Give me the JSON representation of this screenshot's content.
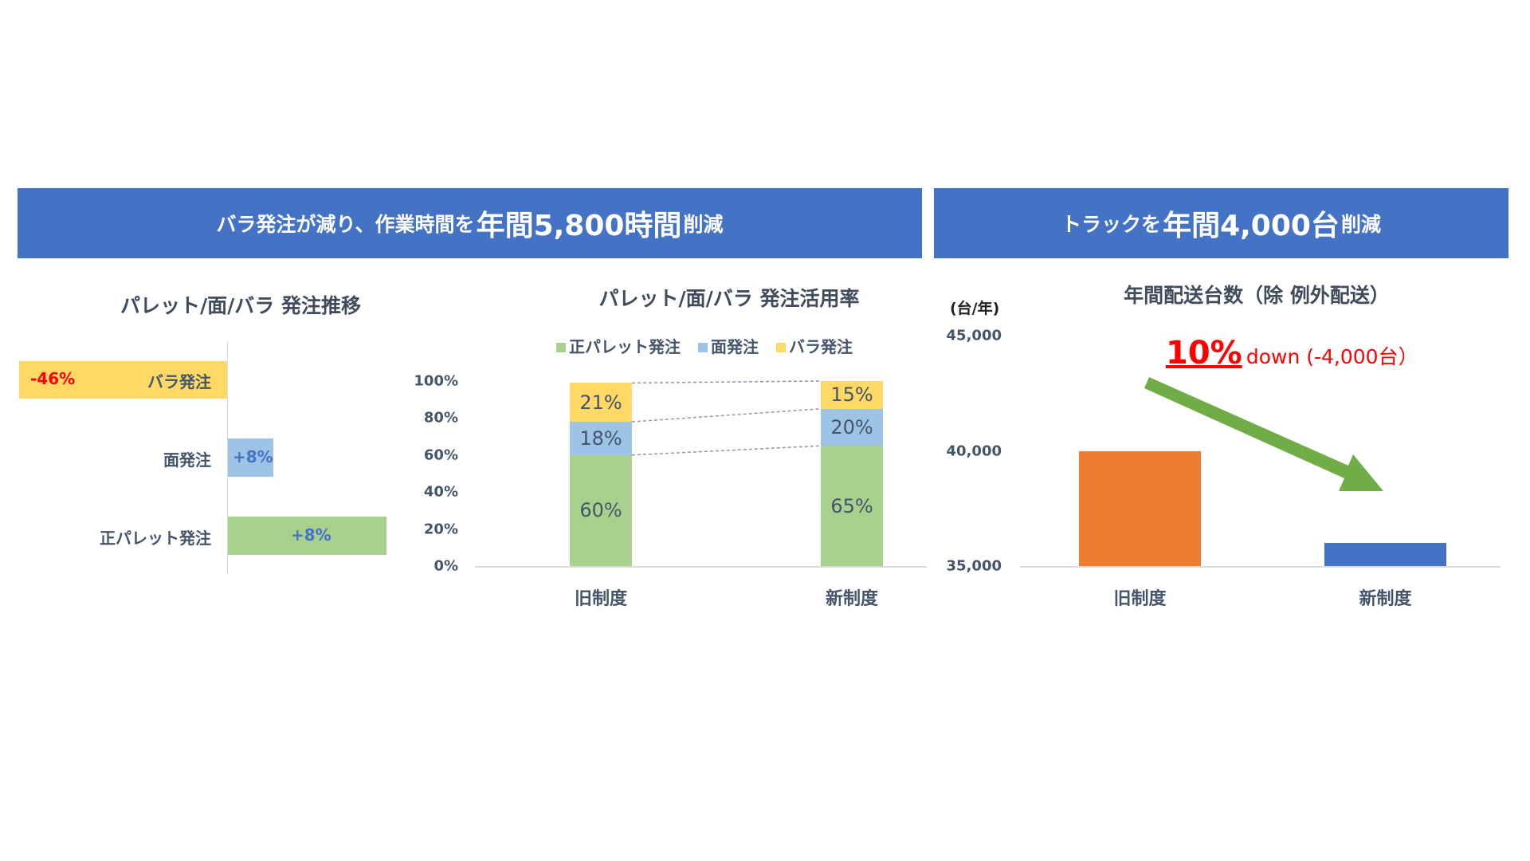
{
  "banners": [
    {
      "pre": "バラ発注が減り、作業時間を",
      "big": "年間5,800時間",
      "post": "削減"
    },
    {
      "pre": "トラックを",
      "big": "年間4,000台",
      "post": "削減"
    }
  ],
  "colors": {
    "banner": "#4472C4",
    "pallet": "#A9D18E",
    "men": "#9DC3E6",
    "bara": "#FFD966",
    "old": "#ED7D31",
    "new": "#4472C4",
    "arrow": "#70AD47",
    "red": "#FF0000"
  },
  "chart_data": [
    {
      "type": "bar",
      "orientation": "horizontal",
      "title": "パレット/面/バラ 発注推移",
      "categories": [
        "バラ発注",
        "面発注",
        "正パレット発注"
      ],
      "values": [
        -46,
        8,
        8
      ],
      "labels": [
        "-46%",
        "+8%",
        "+8%"
      ]
    },
    {
      "type": "bar",
      "stacked": true,
      "title": "パレット/面/バラ 発注活用率",
      "categories": [
        "旧制度",
        "新制度"
      ],
      "series": [
        {
          "name": "正パレット発注",
          "values": [
            60,
            65
          ]
        },
        {
          "name": "面発注",
          "values": [
            18,
            20
          ]
        },
        {
          "name": "バラ発注",
          "values": [
            21,
            15
          ]
        }
      ],
      "yticks": [
        "0%",
        "20%",
        "40%",
        "60%",
        "80%",
        "100%"
      ],
      "ylim": [
        0,
        100
      ],
      "legend": "top"
    },
    {
      "type": "bar",
      "title": "年間配送台数（除 例外配送）",
      "ylabel": "(台/年)",
      "categories": [
        "旧制度",
        "新制度"
      ],
      "values": [
        40000,
        36000
      ],
      "yticks": [
        "35,000",
        "40,000",
        "45,000"
      ],
      "ylim": [
        35000,
        45000
      ],
      "annotation": {
        "pct": "10%",
        "text": "down (-4,000台）"
      }
    }
  ]
}
